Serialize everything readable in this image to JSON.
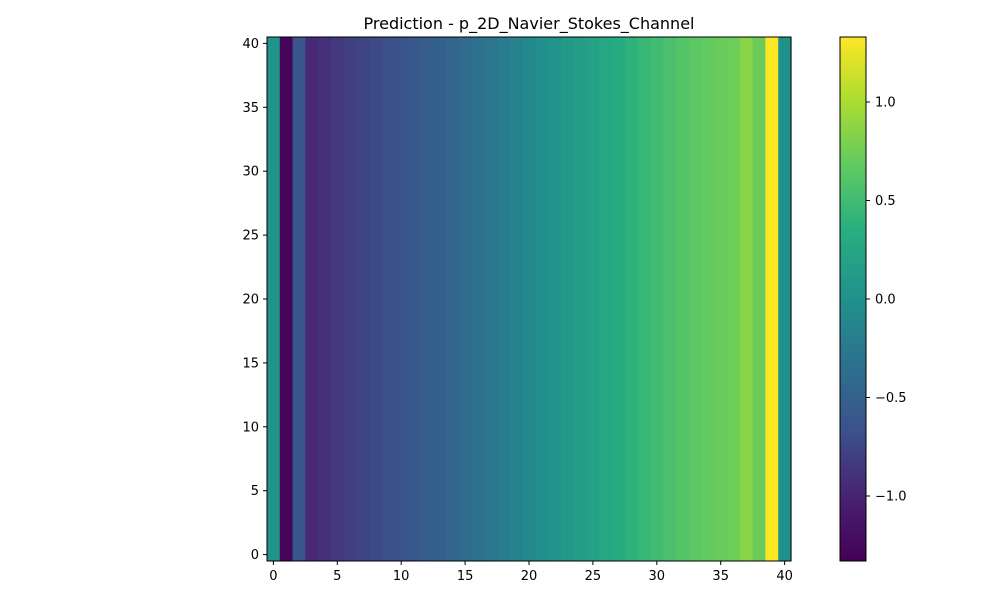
{
  "chart_data": {
    "type": "heatmap",
    "title": "Prediction - p_2D_Navier_Stokes_Channel",
    "xlabel": "",
    "ylabel": "",
    "x_range": [
      -0.5,
      40.5
    ],
    "y_range": [
      -0.5,
      40.5
    ],
    "grid": false,
    "origin": "lower",
    "colormap": "viridis",
    "x_ticks": [
      0,
      5,
      10,
      15,
      20,
      25,
      30,
      35,
      40
    ],
    "y_ticks": [
      0,
      5,
      10,
      15,
      20,
      25,
      30,
      35,
      40
    ],
    "x_tick_labels": [
      "0",
      "5",
      "10",
      "15",
      "20",
      "25",
      "30",
      "35",
      "40"
    ],
    "y_tick_labels": [
      "0",
      "5",
      "10",
      "15",
      "20",
      "25",
      "30",
      "35",
      "40"
    ],
    "column_values": [
      0.05,
      -1.3,
      -0.62,
      -0.95,
      -0.9,
      -0.85,
      -0.8,
      -0.76,
      -0.72,
      -0.68,
      -0.64,
      -0.6,
      -0.55,
      -0.5,
      -0.45,
      -0.4,
      -0.34,
      -0.28,
      -0.22,
      -0.15,
      -0.08,
      -0.02,
      0.04,
      0.1,
      0.15,
      0.2,
      0.26,
      0.32,
      0.38,
      0.44,
      0.5,
      0.55,
      0.6,
      0.65,
      0.68,
      0.71,
      0.73,
      0.85,
      0.72,
      1.33,
      0.0
    ],
    "colorbar": {
      "range": [
        -1.33,
        1.33
      ],
      "ticks": [
        -1.0,
        -0.5,
        0.0,
        0.5,
        1.0
      ],
      "tick_labels": [
        "−1.0",
        "−0.5",
        "0.0",
        "0.5",
        "1.0"
      ]
    }
  }
}
